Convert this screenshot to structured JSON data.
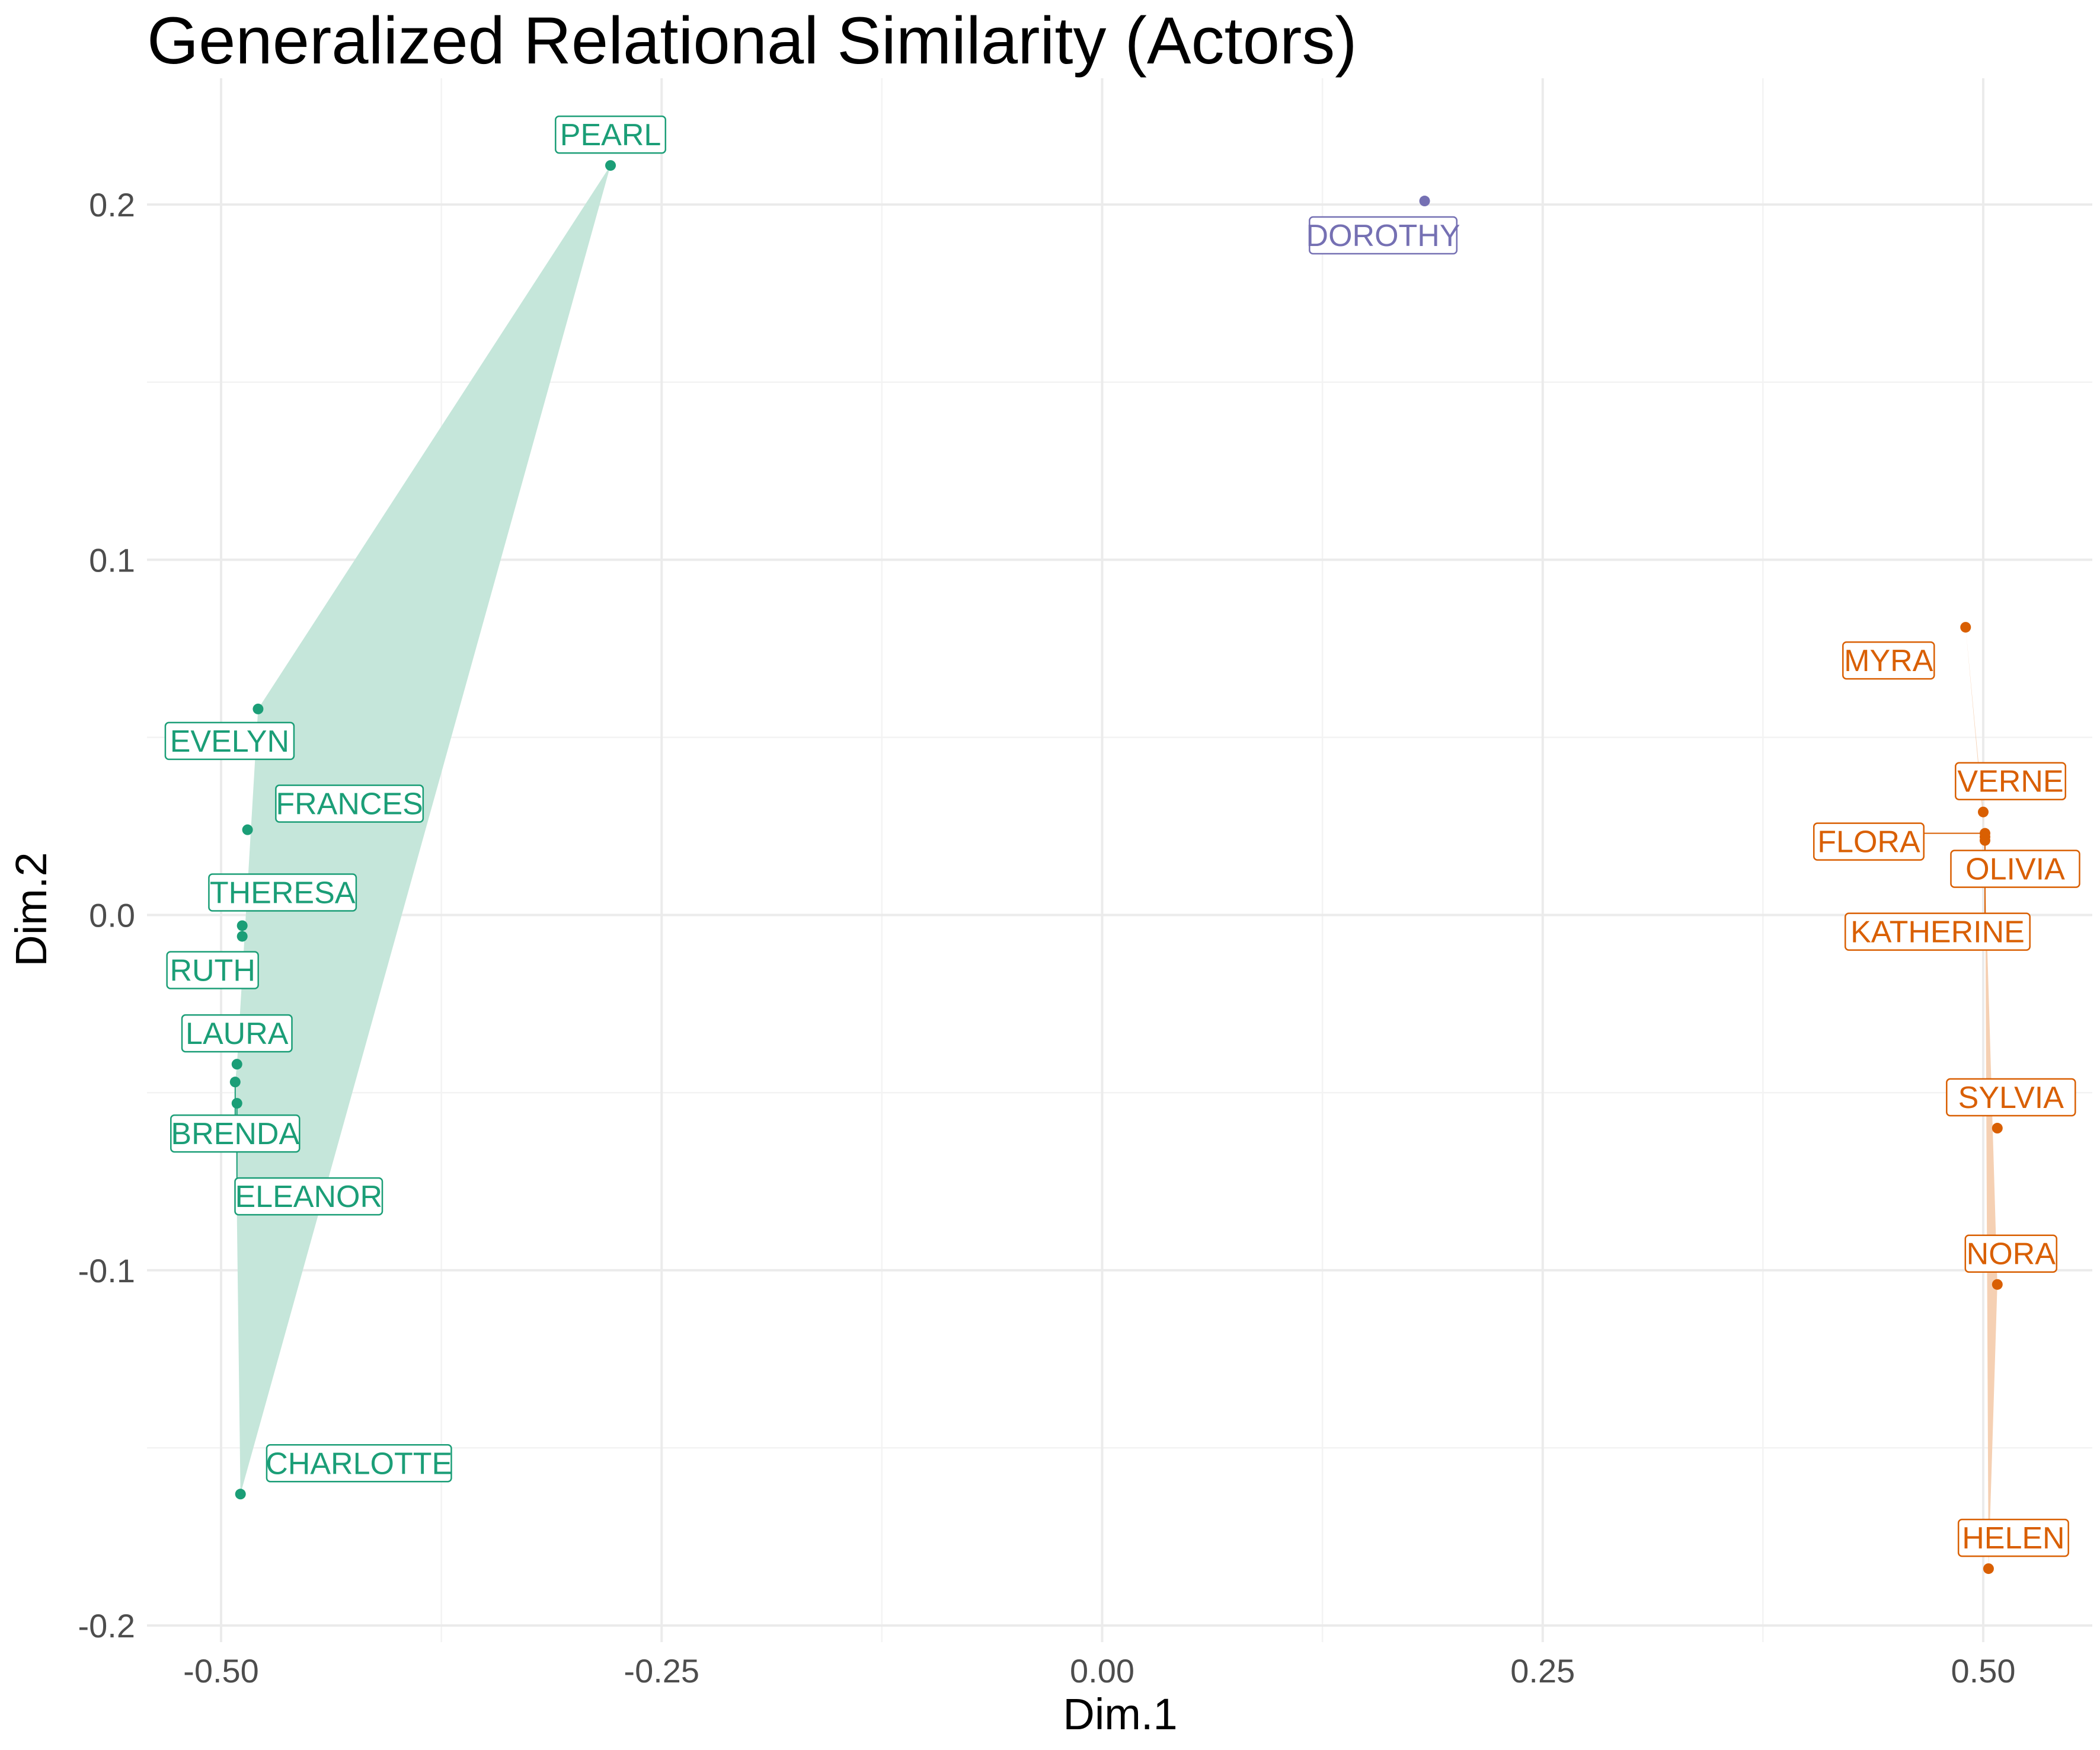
{
  "chart_data": {
    "type": "scatter",
    "title": "Generalized Relational Similarity (Actors)",
    "xlabel": "Dim.1",
    "ylabel": "Dim.2",
    "xlim": [
      -0.5,
      0.5
    ],
    "ylim": [
      -0.2,
      0.2
    ],
    "x_ticks": [
      -0.5,
      -0.25,
      0.0,
      0.25,
      0.5
    ],
    "x_tick_labels": [
      "-0.50",
      "-0.25",
      "0.00",
      "0.25",
      "0.50"
    ],
    "y_ticks": [
      -0.2,
      -0.1,
      0.0,
      0.1,
      0.2
    ],
    "y_tick_labels": [
      "-0.2",
      "-0.1",
      "0.0",
      "0.1",
      "0.2"
    ],
    "grid": true,
    "legend": "none",
    "colors": {
      "cluster1": "#1b9e77",
      "cluster2": "#d95f02",
      "cluster3": "#7570b3",
      "hull1": "#c5e6da",
      "hull2": "#f5d0b3"
    },
    "points": [
      {
        "name": "PEARL",
        "x": -0.279,
        "y": 0.211,
        "cluster": 1
      },
      {
        "name": "EVELYN",
        "x": -0.479,
        "y": 0.058,
        "cluster": 1
      },
      {
        "name": "FRANCES",
        "x": -0.485,
        "y": 0.024,
        "cluster": 1
      },
      {
        "name": "THERESA",
        "x": -0.488,
        "y": -0.003,
        "cluster": 1
      },
      {
        "name": "RUTH",
        "x": -0.488,
        "y": -0.006,
        "cluster": 1
      },
      {
        "name": "LAURA",
        "x": -0.491,
        "y": -0.042,
        "cluster": 1
      },
      {
        "name": "BRENDA",
        "x": -0.492,
        "y": -0.047,
        "cluster": 1
      },
      {
        "name": "ELEANOR",
        "x": -0.491,
        "y": -0.053,
        "cluster": 1
      },
      {
        "name": "CHARLOTTE",
        "x": -0.489,
        "y": -0.163,
        "cluster": 1
      },
      {
        "name": "DOROTHY",
        "x": 0.183,
        "y": 0.201,
        "cluster": 3
      },
      {
        "name": "MYRA",
        "x": 0.49,
        "y": 0.081,
        "cluster": 2
      },
      {
        "name": "VERNE",
        "x": 0.5,
        "y": 0.029,
        "cluster": 2
      },
      {
        "name": "FLORA",
        "x": 0.501,
        "y": 0.023,
        "cluster": 2
      },
      {
        "name": "OLIVIA",
        "x": 0.501,
        "y": 0.022,
        "cluster": 2
      },
      {
        "name": "KATHERINE",
        "x": 0.501,
        "y": 0.021,
        "cluster": 2
      },
      {
        "name": "SYLVIA",
        "x": 0.508,
        "y": -0.06,
        "cluster": 2
      },
      {
        "name": "NORA",
        "x": 0.508,
        "y": -0.104,
        "cluster": 2
      },
      {
        "name": "HELEN",
        "x": 0.503,
        "y": -0.184,
        "cluster": 2
      }
    ],
    "hulls": [
      {
        "cluster": 1,
        "points": [
          "PEARL",
          "EVELYN",
          "LAURA",
          "BRENDA",
          "CHARLOTTE"
        ]
      },
      {
        "cluster": 2,
        "points": [
          "MYRA",
          "VERNE",
          "NORA",
          "HELEN",
          "KATHERINE"
        ]
      }
    ]
  }
}
